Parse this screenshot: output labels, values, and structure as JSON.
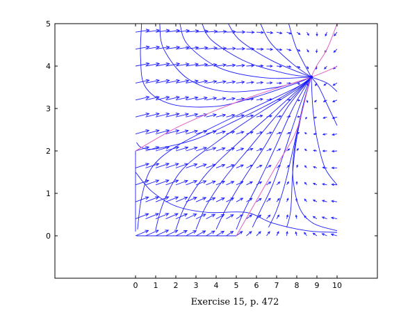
{
  "chart_data": {
    "type": "phase-portrait",
    "caption": "Exercise 15, p. 472",
    "xlim": [
      -4,
      12
    ],
    "ylim": [
      -1,
      5
    ],
    "xticks": [
      0,
      1,
      2,
      3,
      4,
      5,
      6,
      7,
      8,
      9,
      10
    ],
    "yticks": [
      0,
      1,
      2,
      3,
      4,
      5
    ],
    "equilibrium": {
      "x": 8.72,
      "y": 3.74
    },
    "colors": {
      "trajectory": "#1a1aff",
      "field_arrow": "#1a1aff",
      "nullcline": "#e060c0",
      "frame": "#000000"
    },
    "nullclines": [
      {
        "points": [
          [
            0,
            2.0
          ],
          [
            2,
            2.54
          ],
          [
            4,
            2.96
          ],
          [
            6,
            3.32
          ],
          [
            8.72,
            3.74
          ],
          [
            10,
            3.99
          ]
        ]
      },
      {
        "points": [
          [
            5,
            0
          ],
          [
            6,
            0.83
          ],
          [
            7,
            1.66
          ],
          [
            8,
            2.5
          ],
          [
            8.72,
            3.74
          ],
          [
            9.5,
            4.4
          ],
          [
            10,
            5
          ]
        ]
      }
    ],
    "trajectories": [
      [
        [
          0.05,
          2.2
        ],
        [
          0.3,
          2.08
        ],
        [
          1,
          2.05
        ],
        [
          3,
          2.28
        ],
        [
          5,
          2.72
        ],
        [
          7,
          3.2
        ],
        [
          8.3,
          3.58
        ],
        [
          8.72,
          3.74
        ]
      ],
      [
        [
          0,
          1.5
        ],
        [
          0.8,
          1.05
        ],
        [
          2,
          0.7
        ],
        [
          3.6,
          0.55
        ],
        [
          5.5,
          0.55
        ],
        [
          6.8,
          0.3
        ],
        [
          8.5,
          0.12
        ],
        [
          10,
          0.08
        ]
      ],
      [
        [
          0.3,
          5
        ],
        [
          0.25,
          4.2
        ],
        [
          0.5,
          3.5
        ],
        [
          1.8,
          3.1
        ],
        [
          4,
          3.05
        ],
        [
          6,
          3.28
        ],
        [
          8,
          3.6
        ],
        [
          8.72,
          3.74
        ]
      ],
      [
        [
          1.2,
          5
        ],
        [
          1.4,
          4.4
        ],
        [
          2.6,
          3.7
        ],
        [
          4.5,
          3.4
        ],
        [
          7,
          3.5
        ],
        [
          8.72,
          3.74
        ]
      ],
      [
        [
          2.2,
          5
        ],
        [
          2.6,
          4.5
        ],
        [
          4.2,
          3.95
        ],
        [
          6.5,
          3.72
        ],
        [
          8.72,
          3.74
        ]
      ],
      [
        [
          3.3,
          5
        ],
        [
          3.8,
          4.6
        ],
        [
          5.5,
          4.1
        ],
        [
          7.5,
          3.82
        ],
        [
          8.72,
          3.74
        ]
      ],
      [
        [
          4.6,
          5
        ],
        [
          5.2,
          4.6
        ],
        [
          6.8,
          4.12
        ],
        [
          8.72,
          3.74
        ]
      ],
      [
        [
          6.2,
          5
        ],
        [
          6.7,
          4.55
        ],
        [
          7.8,
          4.05
        ],
        [
          8.72,
          3.74
        ]
      ],
      [
        [
          7.6,
          5
        ],
        [
          8.0,
          4.4
        ],
        [
          8.72,
          3.74
        ]
      ],
      [
        [
          0.1,
          0.15
        ],
        [
          0.3,
          0.9
        ],
        [
          0.8,
          1.6
        ],
        [
          2,
          2.1
        ],
        [
          4,
          2.6
        ],
        [
          6,
          3.05
        ],
        [
          8,
          3.5
        ],
        [
          8.72,
          3.74
        ]
      ],
      [
        [
          1,
          0.15
        ],
        [
          1.4,
          0.8
        ],
        [
          2.3,
          1.55
        ],
        [
          4,
          2.2
        ],
        [
          6,
          2.85
        ],
        [
          8,
          3.45
        ],
        [
          8.72,
          3.74
        ]
      ],
      [
        [
          2,
          0.15
        ],
        [
          2.5,
          0.75
        ],
        [
          3.5,
          1.45
        ],
        [
          5,
          2.15
        ],
        [
          6.8,
          2.9
        ],
        [
          8.2,
          3.5
        ],
        [
          8.72,
          3.74
        ]
      ],
      [
        [
          3,
          0.15
        ],
        [
          3.5,
          0.7
        ],
        [
          4.4,
          1.35
        ],
        [
          5.7,
          2.1
        ],
        [
          7.2,
          2.95
        ],
        [
          8.3,
          3.52
        ],
        [
          8.72,
          3.74
        ]
      ],
      [
        [
          4,
          0.15
        ],
        [
          4.5,
          0.65
        ],
        [
          5.3,
          1.3
        ],
        [
          6.4,
          2.1
        ],
        [
          7.5,
          3.0
        ],
        [
          8.4,
          3.55
        ],
        [
          8.72,
          3.74
        ]
      ],
      [
        [
          5,
          0.15
        ],
        [
          5.4,
          0.6
        ],
        [
          6.1,
          1.25
        ],
        [
          6.9,
          2.05
        ],
        [
          7.8,
          3.0
        ],
        [
          8.5,
          3.58
        ],
        [
          8.72,
          3.74
        ]
      ],
      [
        [
          5.8,
          0.2
        ],
        [
          6.2,
          0.6
        ],
        [
          6.8,
          1.2
        ],
        [
          7.4,
          2.0
        ],
        [
          8.1,
          3.0
        ],
        [
          8.6,
          3.62
        ],
        [
          8.72,
          3.74
        ]
      ],
      [
        [
          6.6,
          0.2
        ],
        [
          7.0,
          0.6
        ],
        [
          7.4,
          1.2
        ],
        [
          7.8,
          2.0
        ],
        [
          8.3,
          3.05
        ],
        [
          8.65,
          3.65
        ],
        [
          8.72,
          3.74
        ]
      ],
      [
        [
          7.5,
          0.2
        ],
        [
          7.7,
          0.6
        ],
        [
          7.8,
          1.5
        ],
        [
          8.0,
          2.3
        ],
        [
          8.4,
          3.2
        ],
        [
          8.72,
          3.74
        ]
      ],
      [
        [
          10,
          0.12
        ],
        [
          8.8,
          0.3
        ],
        [
          8.1,
          0.7
        ],
        [
          7.8,
          1.5
        ],
        [
          8.0,
          2.4
        ],
        [
          8.45,
          3.3
        ],
        [
          8.72,
          3.74
        ]
      ],
      [
        [
          10,
          1.2
        ],
        [
          9.4,
          1.6
        ],
        [
          9.0,
          2.3
        ],
        [
          8.8,
          3.0
        ],
        [
          8.72,
          3.74
        ]
      ],
      [
        [
          10,
          2.6
        ],
        [
          9.6,
          3.0
        ],
        [
          9.1,
          3.5
        ],
        [
          8.72,
          3.74
        ]
      ],
      [
        [
          10,
          3.4
        ],
        [
          9.5,
          3.6
        ],
        [
          8.72,
          3.74
        ]
      ],
      [
        [
          0,
          2.0
        ],
        [
          0,
          0.7
        ],
        [
          0,
          0.1
        ]
      ],
      [
        [
          0.05,
          0
        ],
        [
          5,
          0
        ]
      ]
    ]
  }
}
